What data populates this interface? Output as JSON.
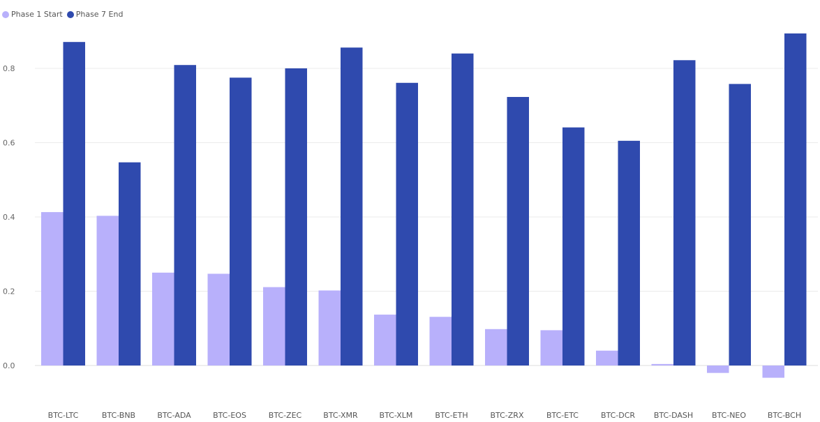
{
  "chart_data": {
    "type": "bar",
    "categories": [
      "BTC-LTC",
      "BTC-BNB",
      "BTC-ADA",
      "BTC-EOS",
      "BTC-ZEC",
      "BTC-XMR",
      "BTC-XLM",
      "BTC-ETH",
      "BTC-ZRX",
      "BTC-ETC",
      "BTC-DCR",
      "BTC-DASH",
      "BTC-NEO",
      "BTC-BCH"
    ],
    "series": [
      {
        "name": "Phase 1 Start",
        "color": "#b8b0fb",
        "values": [
          0.413,
          0.403,
          0.25,
          0.247,
          0.211,
          0.202,
          0.137,
          0.131,
          0.098,
          0.095,
          0.04,
          0.004,
          -0.02,
          -0.033
        ]
      },
      {
        "name": "Phase 7 End",
        "color": "#2f4aae",
        "values": [
          0.871,
          0.547,
          0.809,
          0.775,
          0.8,
          0.856,
          0.761,
          0.84,
          0.723,
          0.641,
          0.605,
          0.822,
          0.758,
          0.894
        ]
      }
    ],
    "yticks": [
      "0.0",
      "0.2",
      "0.4",
      "0.6",
      "0.8"
    ],
    "ylim": [
      -0.06,
      0.95
    ],
    "grid": true,
    "legend_position": "top-left",
    "title": "",
    "xlabel": "",
    "ylabel": ""
  }
}
